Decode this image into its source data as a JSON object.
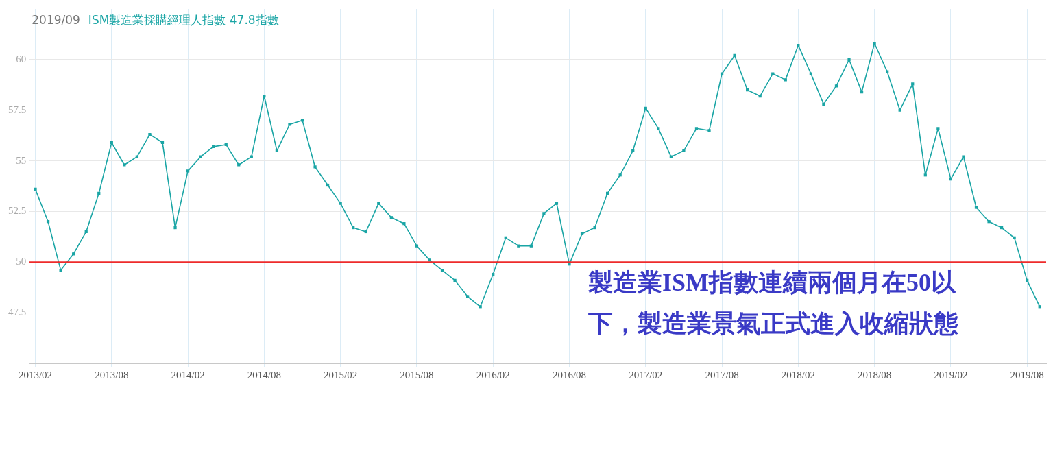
{
  "chart_data": {
    "type": "line",
    "title": "2019/09",
    "categories": [
      "2013/02",
      null,
      null,
      null,
      null,
      null,
      "2013/08",
      null,
      null,
      null,
      null,
      null,
      "2014/02",
      null,
      null,
      null,
      null,
      null,
      "2014/08",
      null,
      null,
      null,
      null,
      null,
      "2015/02",
      null,
      null,
      null,
      null,
      null,
      "2015/08",
      null,
      null,
      null,
      null,
      null,
      "2016/02",
      null,
      null,
      null,
      null,
      null,
      "2016/08",
      null,
      null,
      null,
      null,
      null,
      "2017/02",
      null,
      null,
      null,
      null,
      null,
      "2017/08",
      null,
      null,
      null,
      null,
      null,
      "2018/02",
      null,
      null,
      null,
      null,
      null,
      "2018/08",
      null,
      null,
      null,
      null,
      null,
      "2019/02",
      null,
      null,
      null,
      null,
      null,
      "2019/08",
      null
    ],
    "series": [
      {
        "name": "ISM製造業採購經理人指數 47.8指數",
        "color": "#1aa5a5",
        "values": [
          53.6,
          52.0,
          49.6,
          50.4,
          51.5,
          53.4,
          55.9,
          54.8,
          55.2,
          56.3,
          55.9,
          51.7,
          54.5,
          55.2,
          55.7,
          55.8,
          54.8,
          55.2,
          58.2,
          55.5,
          56.8,
          57.0,
          54.7,
          53.8,
          52.9,
          51.7,
          51.5,
          52.9,
          52.2,
          51.9,
          50.8,
          50.1,
          49.6,
          49.1,
          48.3,
          47.8,
          49.4,
          51.2,
          50.8,
          50.8,
          52.4,
          52.9,
          49.9,
          51.4,
          51.7,
          53.4,
          54.3,
          55.5,
          57.6,
          56.6,
          55.2,
          55.5,
          56.6,
          56.5,
          59.3,
          60.2,
          58.5,
          58.2,
          59.3,
          59.0,
          60.7,
          59.3,
          57.8,
          58.7,
          60.0,
          58.4,
          60.8,
          59.4,
          57.5,
          58.8,
          54.3,
          56.6,
          54.1,
          55.2,
          52.7,
          52.0,
          51.7,
          51.2,
          49.1,
          47.8
        ]
      }
    ],
    "ylim": [
      45,
      62.5
    ],
    "yticks": [
      47.5,
      50,
      52.5,
      55,
      57.5,
      60
    ],
    "grid": true,
    "legend": "top left",
    "marker": "square",
    "ref_lines": [
      {
        "axis": "y",
        "value": 50,
        "color": "#ee2b2b"
      }
    ],
    "annotations": [
      "製造業ISM指數連續兩個月在50以下，製造業景氣正式進入收縮狀態"
    ]
  }
}
